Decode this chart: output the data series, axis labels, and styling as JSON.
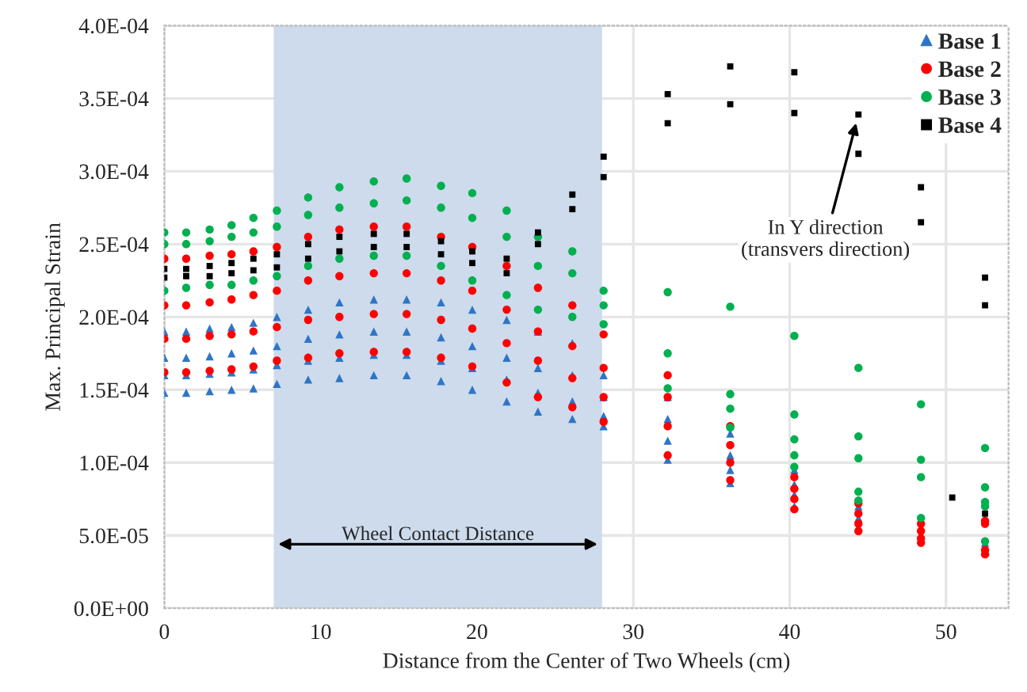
{
  "chart_data": {
    "type": "scatter",
    "xlabel": "Distance from the Center of Two Wheels (cm)",
    "ylabel": "Max. Principal Strain",
    "xlim": [
      0,
      54
    ],
    "xticks": [
      0,
      10,
      20,
      30,
      40,
      50
    ],
    "ylim": [
      0,
      0.0004
    ],
    "yticks": [
      {
        "value": 0,
        "label": "0.0E+00"
      },
      {
        "value": 5e-05,
        "label": "5.0E-05"
      },
      {
        "value": 0.0001,
        "label": "1.0E-04"
      },
      {
        "value": 0.00015,
        "label": "1.5E-04"
      },
      {
        "value": 0.0002,
        "label": "2.0E-04"
      },
      {
        "value": 0.00025,
        "label": "2.5E-04"
      },
      {
        "value": 0.0003,
        "label": "3.0E-04"
      },
      {
        "value": 0.00035,
        "label": "3.5E-04"
      },
      {
        "value": 0.0004,
        "label": "4.0E-04"
      }
    ],
    "grid": true,
    "legend": "top right",
    "bands": [
      {
        "axis": "x",
        "from": 7,
        "to": 28,
        "label": "Wheel Contact Distance",
        "color": "#cddbec"
      }
    ],
    "annotations": [
      {
        "text": "In Y direction\n(transvers direction)",
        "x": 44.4,
        "y": 0.000339
      }
    ],
    "series": [
      {
        "name": "Base 1",
        "color": "#2e75c6",
        "marker": "triangle",
        "x": [
          0,
          0,
          0,
          0,
          1.4,
          1.4,
          1.4,
          1.4,
          2.9,
          2.9,
          2.9,
          2.9,
          4.3,
          4.3,
          4.3,
          4.3,
          5.7,
          5.7,
          5.7,
          5.7,
          7.2,
          7.2,
          7.2,
          7.2,
          9.2,
          9.2,
          9.2,
          9.2,
          11.2,
          11.2,
          11.2,
          11.2,
          13.4,
          13.4,
          13.4,
          13.4,
          15.5,
          15.5,
          15.5,
          15.5,
          17.7,
          17.7,
          17.7,
          17.7,
          19.7,
          19.7,
          19.7,
          19.7,
          21.9,
          21.9,
          21.9,
          21.9,
          23.9,
          23.9,
          23.9,
          23.9,
          26.1,
          26.1,
          26.1,
          26.1,
          28.1,
          28.1,
          28.1,
          28.1,
          32.2,
          32.2,
          32.2,
          32.2,
          36.2,
          36.2,
          36.2,
          36.2,
          40.3,
          40.3,
          40.3,
          40.3,
          44.4,
          44.4,
          52.5,
          52.5,
          52.5
        ],
        "values": [
          0.00019,
          0.000172,
          0.00016,
          0.000148,
          0.00019,
          0.000172,
          0.00016,
          0.000148,
          0.000192,
          0.000173,
          0.000161,
          0.000149,
          0.000193,
          0.000175,
          0.000162,
          0.00015,
          0.000196,
          0.000177,
          0.000164,
          0.000151,
          0.0002,
          0.00018,
          0.000167,
          0.000154,
          0.000205,
          0.000185,
          0.00017,
          0.000157,
          0.00021,
          0.000188,
          0.000172,
          0.000158,
          0.000212,
          0.00019,
          0.000174,
          0.00016,
          0.000212,
          0.00019,
          0.000174,
          0.00016,
          0.00021,
          0.000186,
          0.00017,
          0.000156,
          0.000205,
          0.00018,
          0.000165,
          0.00015,
          0.000198,
          0.000172,
          0.000157,
          0.000142,
          0.00019,
          0.000165,
          0.000148,
          0.000135,
          0.000182,
          0.00016,
          0.000142,
          0.00013,
          0.00016,
          0.000145,
          0.000132,
          0.000125,
          0.000145,
          0.00013,
          0.000115,
          0.000102,
          0.00012,
          0.000105,
          9.5e-05,
          8.6e-05,
          9.5e-05,
          8.5e-05,
          7.8e-05,
          7e-05,
          7e-05,
          6.2e-05,
          6.2e-05,
          4.5e-05,
          4e-05
        ]
      },
      {
        "name": "Base 2",
        "color": "#ff0000",
        "marker": "circle",
        "x": [
          0,
          0,
          0,
          0,
          1.4,
          1.4,
          1.4,
          1.4,
          2.9,
          2.9,
          2.9,
          2.9,
          4.3,
          4.3,
          4.3,
          4.3,
          5.7,
          5.7,
          5.7,
          5.7,
          7.2,
          7.2,
          7.2,
          7.2,
          9.2,
          9.2,
          9.2,
          9.2,
          11.2,
          11.2,
          11.2,
          11.2,
          13.4,
          13.4,
          13.4,
          13.4,
          15.5,
          15.5,
          15.5,
          15.5,
          17.7,
          17.7,
          17.7,
          17.7,
          19.7,
          19.7,
          19.7,
          19.7,
          21.9,
          21.9,
          21.9,
          21.9,
          23.9,
          23.9,
          23.9,
          23.9,
          26.1,
          26.1,
          26.1,
          26.1,
          28.1,
          28.1,
          28.1,
          28.1,
          32.2,
          32.2,
          32.2,
          32.2,
          36.2,
          36.2,
          36.2,
          36.2,
          40.3,
          40.3,
          40.3,
          40.3,
          44.4,
          44.4,
          44.4,
          44.4,
          48.4,
          48.4,
          48.4,
          48.4,
          52.5,
          52.5,
          52.5,
          52.5
        ],
        "values": [
          0.00024,
          0.000208,
          0.000185,
          0.000162,
          0.00024,
          0.000208,
          0.000185,
          0.000162,
          0.000242,
          0.00021,
          0.000187,
          0.000163,
          0.000243,
          0.000212,
          0.000188,
          0.000164,
          0.000245,
          0.000215,
          0.00019,
          0.000166,
          0.000248,
          0.000218,
          0.000193,
          0.00017,
          0.000255,
          0.000225,
          0.000198,
          0.000172,
          0.00026,
          0.000228,
          0.0002,
          0.000175,
          0.000262,
          0.00023,
          0.000202,
          0.000176,
          0.000262,
          0.00023,
          0.000202,
          0.000176,
          0.000255,
          0.000225,
          0.000198,
          0.000172,
          0.000248,
          0.000218,
          0.000192,
          0.000166,
          0.000235,
          0.000205,
          0.000182,
          0.000155,
          0.00022,
          0.00019,
          0.00017,
          0.000145,
          0.000208,
          0.00018,
          0.000158,
          0.000138,
          0.000188,
          0.000165,
          0.000145,
          0.000128,
          0.00016,
          0.000145,
          0.000125,
          0.000105,
          0.000125,
          0.000112,
          0.0001,
          8.8e-05,
          9e-05,
          8.2e-05,
          7.5e-05,
          6.8e-05,
          7.2e-05,
          6.5e-05,
          5.8e-05,
          5.3e-05,
          5.8e-05,
          5.3e-05,
          4.8e-05,
          4.5e-05,
          6e-05,
          5.8e-05,
          4e-05,
          3.7e-05
        ]
      },
      {
        "name": "Base 3",
        "color": "#00b050",
        "marker": "circle",
        "x": [
          0,
          0,
          0,
          1.4,
          1.4,
          1.4,
          2.9,
          2.9,
          2.9,
          4.3,
          4.3,
          4.3,
          5.7,
          5.7,
          5.7,
          7.2,
          7.2,
          7.2,
          9.2,
          9.2,
          9.2,
          11.2,
          11.2,
          11.2,
          13.4,
          13.4,
          13.4,
          15.5,
          15.5,
          15.5,
          17.7,
          17.7,
          17.7,
          19.7,
          19.7,
          19.7,
          21.9,
          21.9,
          21.9,
          23.9,
          23.9,
          23.9,
          26.1,
          26.1,
          26.1,
          28.1,
          28.1,
          28.1,
          32.2,
          32.2,
          32.2,
          36.2,
          36.2,
          36.2,
          36.2,
          40.3,
          40.3,
          40.3,
          40.3,
          40.3,
          44.4,
          44.4,
          44.4,
          44.4,
          44.4,
          48.4,
          48.4,
          48.4,
          48.4,
          52.5,
          52.5,
          52.5,
          52.5,
          52.5
        ],
        "values": [
          0.000258,
          0.00025,
          0.000218,
          0.000258,
          0.00025,
          0.00022,
          0.00026,
          0.000252,
          0.000222,
          0.000263,
          0.000255,
          0.000222,
          0.000268,
          0.000258,
          0.000225,
          0.000273,
          0.000262,
          0.000228,
          0.000282,
          0.00027,
          0.000235,
          0.000289,
          0.000275,
          0.00024,
          0.000293,
          0.000278,
          0.000242,
          0.000295,
          0.00028,
          0.000242,
          0.00029,
          0.000275,
          0.000235,
          0.000285,
          0.000268,
          0.000225,
          0.000273,
          0.000255,
          0.000215,
          0.000255,
          0.000235,
          0.000205,
          0.000245,
          0.00023,
          0.0002,
          0.000218,
          0.000208,
          0.000195,
          0.000217,
          0.000175,
          0.000151,
          0.000207,
          0.000147,
          0.000137,
          0.000124,
          0.000187,
          0.000133,
          0.000116,
          0.000105,
          9.7e-05,
          0.000165,
          0.000118,
          0.000103,
          8e-05,
          7.4e-05,
          0.00014,
          0.000102,
          9e-05,
          6.2e-05,
          0.00011,
          8.3e-05,
          7.3e-05,
          7e-05,
          4.6e-05
        ]
      },
      {
        "name": "Base 4",
        "color": "#000000",
        "marker": "square",
        "x": [
          0,
          0,
          1.4,
          1.4,
          2.9,
          2.9,
          4.3,
          4.3,
          5.7,
          5.7,
          7.2,
          7.2,
          9.2,
          9.2,
          11.2,
          11.2,
          13.4,
          13.4,
          15.5,
          15.5,
          17.7,
          17.7,
          19.7,
          19.7,
          21.9,
          21.9,
          23.9,
          23.9,
          26.1,
          26.1,
          28.1,
          28.1,
          32.2,
          32.2,
          36.2,
          36.2,
          40.3,
          40.3,
          44.4,
          44.4,
          48.4,
          48.4,
          50.4,
          52.5,
          52.5,
          52.5
        ],
        "values": [
          0.000233,
          0.000227,
          0.000233,
          0.000228,
          0.000235,
          0.000228,
          0.000237,
          0.00023,
          0.00024,
          0.000232,
          0.000243,
          0.000234,
          0.00025,
          0.00024,
          0.000255,
          0.000245,
          0.000257,
          0.000248,
          0.000257,
          0.000248,
          0.000252,
          0.000243,
          0.000245,
          0.000237,
          0.00024,
          0.00023,
          0.000258,
          0.00025,
          0.000284,
          0.000274,
          0.00031,
          0.000296,
          0.000353,
          0.000333,
          0.000372,
          0.000346,
          0.000368,
          0.00034,
          0.000339,
          0.000312,
          0.000289,
          0.000265,
          7.6e-05,
          0.000227,
          0.000208,
          6.5e-05
        ]
      }
    ]
  }
}
